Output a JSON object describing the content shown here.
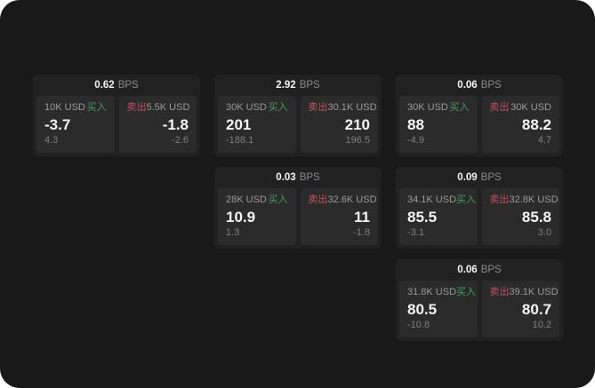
{
  "labels": {
    "bps_suffix": "BPS",
    "buy": "买入",
    "sell": "卖出"
  },
  "colors": {
    "page_bg": "#191919",
    "card_bg": "#212121",
    "panel_bg": "#2b2b2b",
    "buy_green": "#3f9e5d",
    "sell_red": "#c25063"
  },
  "cards": [
    {
      "row": 1,
      "col": 1,
      "bps": "0.62",
      "buy": {
        "amount": "10K USD",
        "value": "-3.7",
        "sub": "4.3"
      },
      "sell": {
        "amount": "5.5K USD",
        "value": "-1.8",
        "sub": "-2.6"
      }
    },
    {
      "row": 1,
      "col": 2,
      "bps": "2.92",
      "buy": {
        "amount": "30K USD",
        "value": "201",
        "sub": "-188.1"
      },
      "sell": {
        "amount": "30.1K USD",
        "value": "210",
        "sub": "196.5"
      }
    },
    {
      "row": 1,
      "col": 3,
      "bps": "0.06",
      "buy": {
        "amount": "30K USD",
        "value": "88",
        "sub": "-4.9"
      },
      "sell": {
        "amount": "30K USD",
        "value": "88.2",
        "sub": "4.7"
      }
    },
    {
      "row": 2,
      "col": 2,
      "bps": "0.03",
      "buy": {
        "amount": "28K USD",
        "value": "10.9",
        "sub": "1.3"
      },
      "sell": {
        "amount": "32.6K USD",
        "value": "11",
        "sub": "-1.8"
      }
    },
    {
      "row": 2,
      "col": 3,
      "bps": "0.09",
      "buy": {
        "amount": "34.1K USD",
        "value": "85.5",
        "sub": "-3.1"
      },
      "sell": {
        "amount": "32.8K USD",
        "value": "85.8",
        "sub": "3.0"
      }
    },
    {
      "row": 3,
      "col": 3,
      "bps": "0.06",
      "buy": {
        "amount": "31.8K USD",
        "value": "80.5",
        "sub": "-10.8"
      },
      "sell": {
        "amount": "39.1K USD",
        "value": "80.7",
        "sub": "10.2"
      }
    }
  ]
}
